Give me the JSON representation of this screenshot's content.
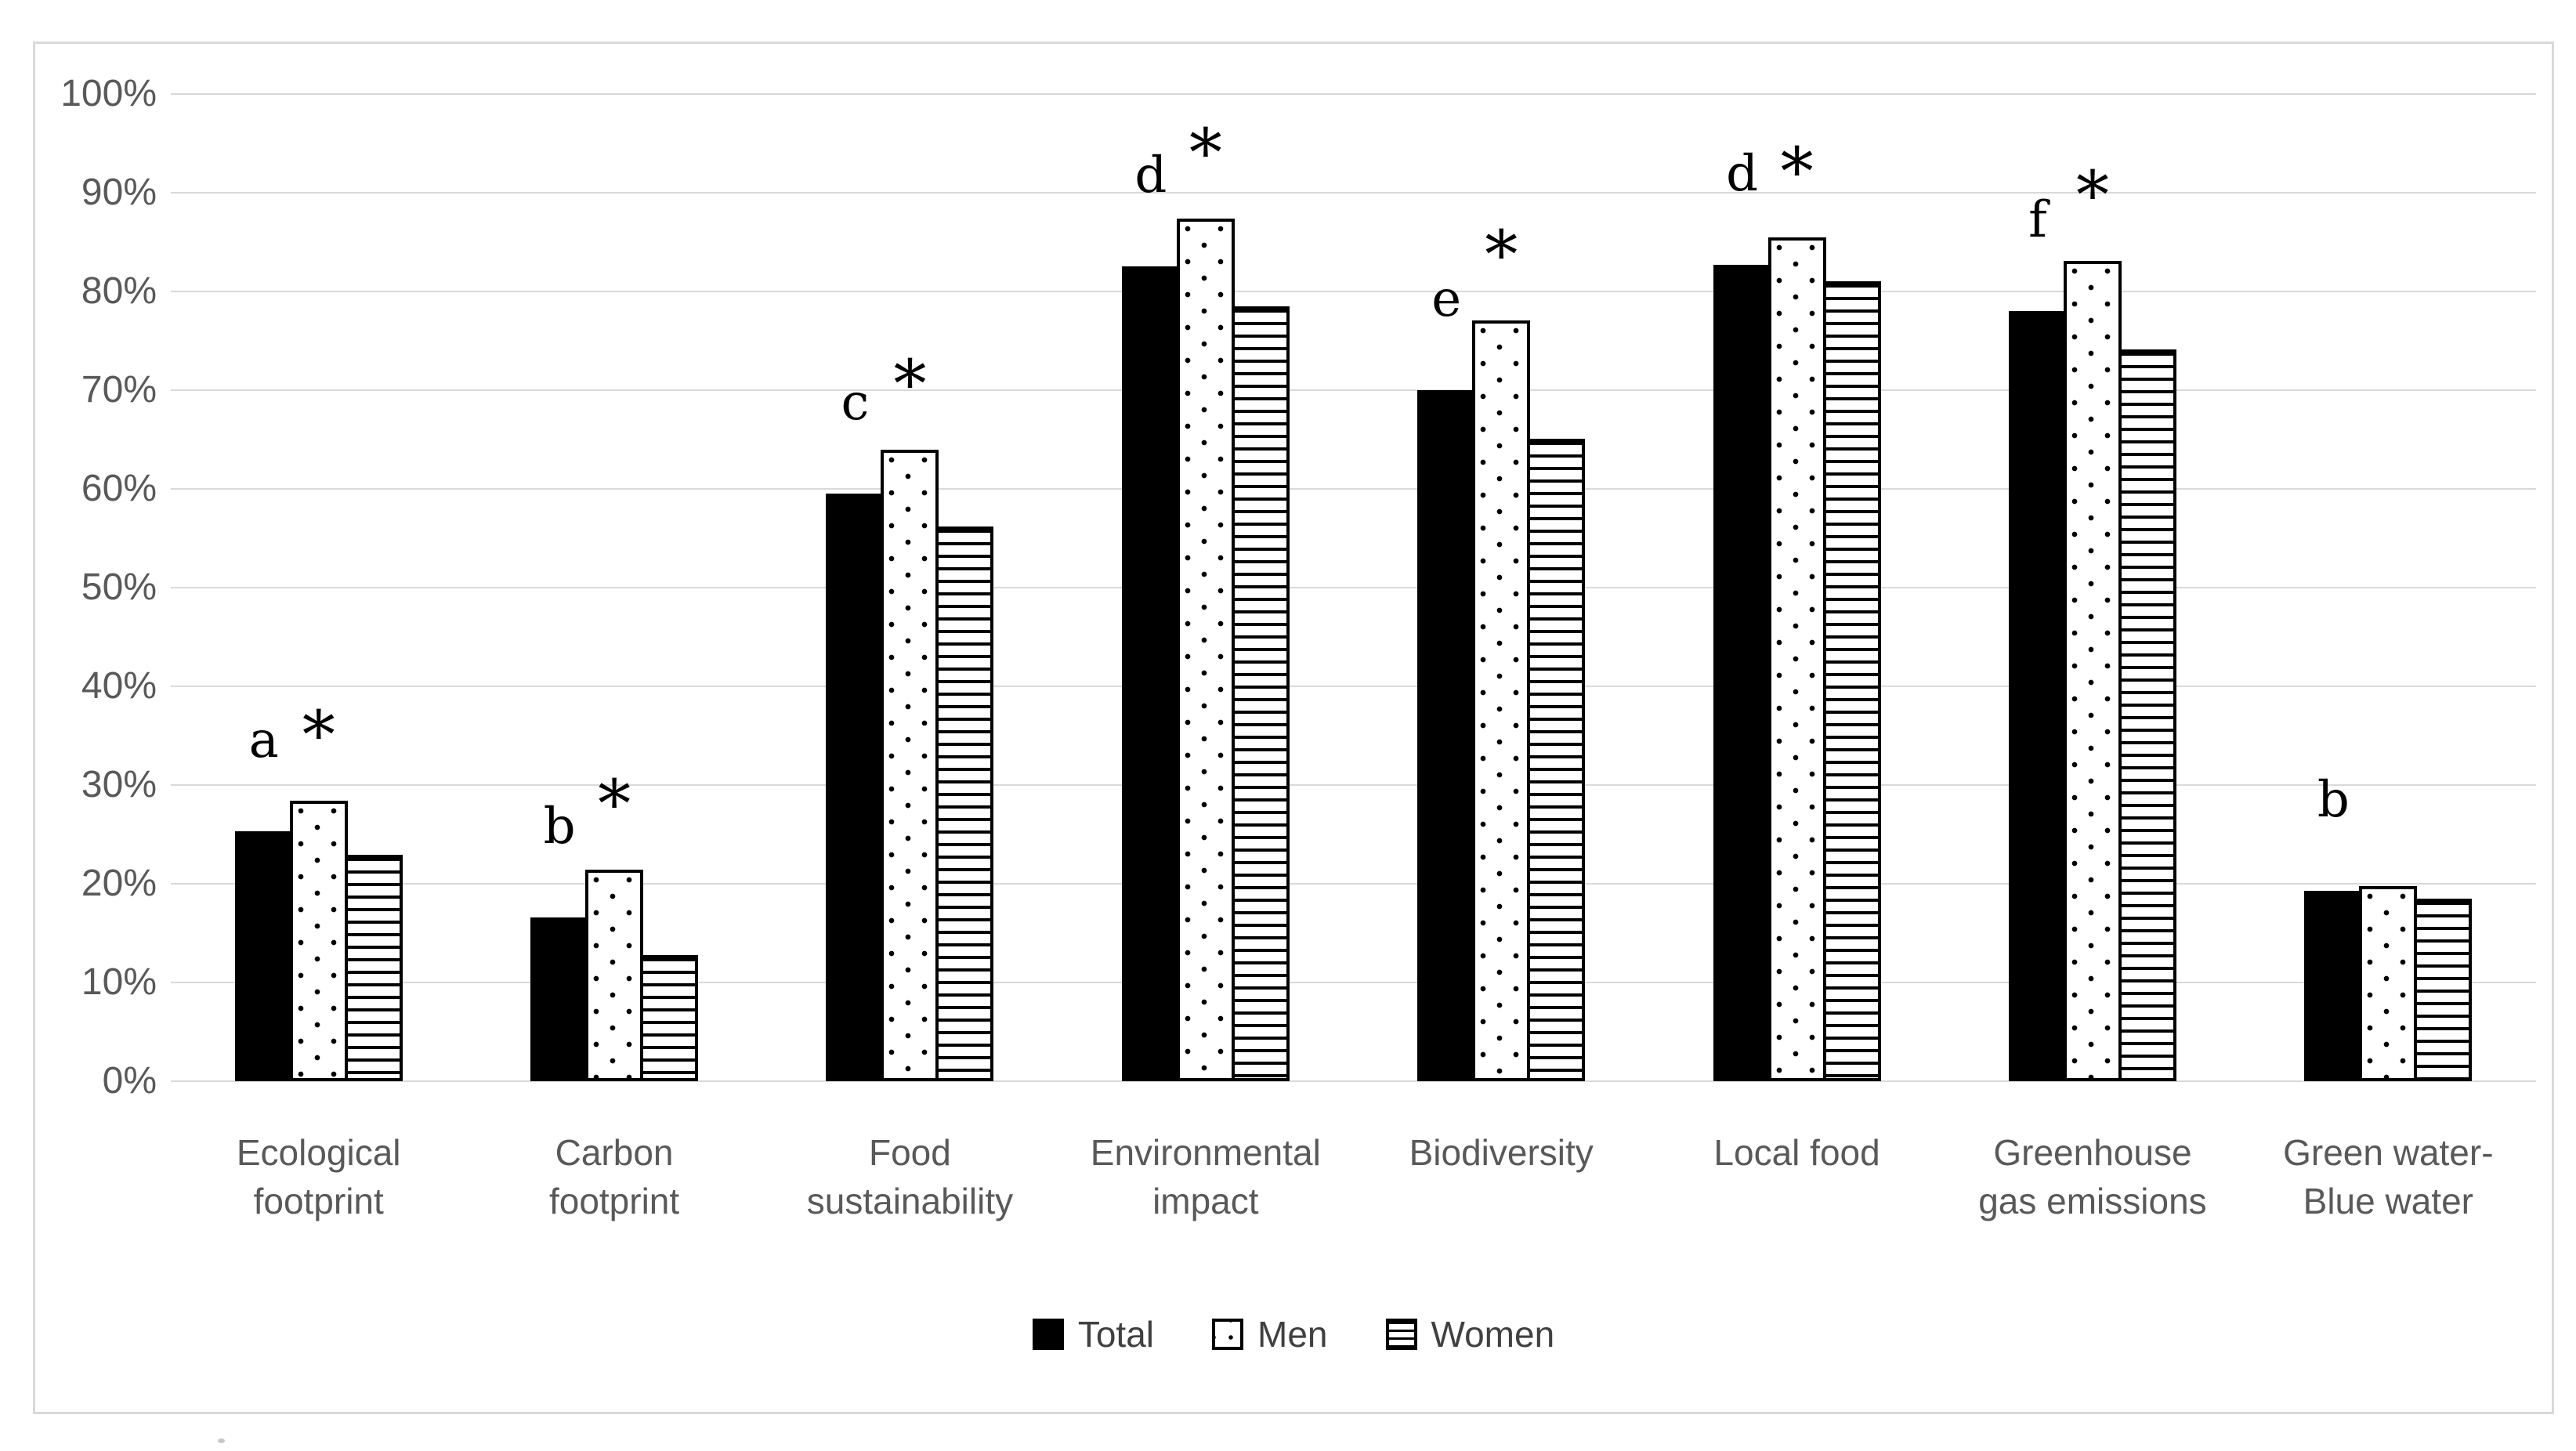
{
  "chart_data": {
    "type": "bar",
    "title": "",
    "xlabel": "",
    "ylabel": "",
    "categories": [
      "Ecological footprint",
      "Carbon footprint",
      "Food sustainability",
      "Environmental impact",
      "Biodiversity",
      "Local food",
      "Greenhouse gas emissions",
      "Green water-Blue water"
    ],
    "category_label_lines": [
      [
        "Ecological",
        "footprint"
      ],
      [
        "Carbon",
        "footprint"
      ],
      [
        "Food",
        "sustainability"
      ],
      [
        "Environmental",
        "impact"
      ],
      [
        "Biodiversity"
      ],
      [
        "Local food"
      ],
      [
        "Greenhouse",
        "gas emissions"
      ],
      [
        "Green water-",
        "Blue water"
      ]
    ],
    "series": [
      {
        "name": "Total",
        "pattern": "solid-black",
        "values": [
          25.3,
          16.6,
          59.5,
          82.5,
          70.0,
          82.7,
          78.0,
          19.3
        ]
      },
      {
        "name": "Men",
        "pattern": "dots",
        "values": [
          28.4,
          21.4,
          64.0,
          87.4,
          77.1,
          85.5,
          83.1,
          19.8
        ]
      },
      {
        "name": "Women",
        "pattern": "horizontal-stripes",
        "values": [
          22.9,
          12.8,
          56.2,
          78.5,
          65.1,
          81.0,
          74.1,
          18.5
        ]
      }
    ],
    "annotations": [
      {
        "category": "Ecological footprint",
        "letter": "a",
        "asterisk": true
      },
      {
        "category": "Carbon footprint",
        "letter": "b",
        "asterisk": true
      },
      {
        "category": "Food sustainability",
        "letter": "c",
        "asterisk": true
      },
      {
        "category": "Environmental impact",
        "letter": "d",
        "asterisk": true
      },
      {
        "category": "Biodiversity",
        "letter": "e",
        "asterisk": true
      },
      {
        "category": "Local food",
        "letter": "d",
        "asterisk": true
      },
      {
        "category": "Greenhouse gas emissions",
        "letter": "f",
        "asterisk": true
      },
      {
        "category": "Green water-Blue water",
        "letter": "b",
        "asterisk": false
      }
    ],
    "y_axis": {
      "min": 0,
      "max": 100,
      "step": 10,
      "tick_labels": [
        "0%",
        "10%",
        "20%",
        "30%",
        "40%",
        "50%",
        "60%",
        "70%",
        "80%",
        "90%",
        "100%"
      ],
      "format": "percent"
    },
    "legend": {
      "position": "bottom",
      "entries": [
        "Total",
        "Men",
        "Women"
      ]
    },
    "grid": true,
    "ylim": [
      0,
      100
    ]
  },
  "colors": {
    "bar_fill": "#000000",
    "pattern_background": "#ffffff",
    "gridline": "#d9d9d9",
    "frame_border": "#d9d9d9",
    "axis_text": "#595959",
    "legend_text": "#404040",
    "annotation_text": "#000000"
  }
}
